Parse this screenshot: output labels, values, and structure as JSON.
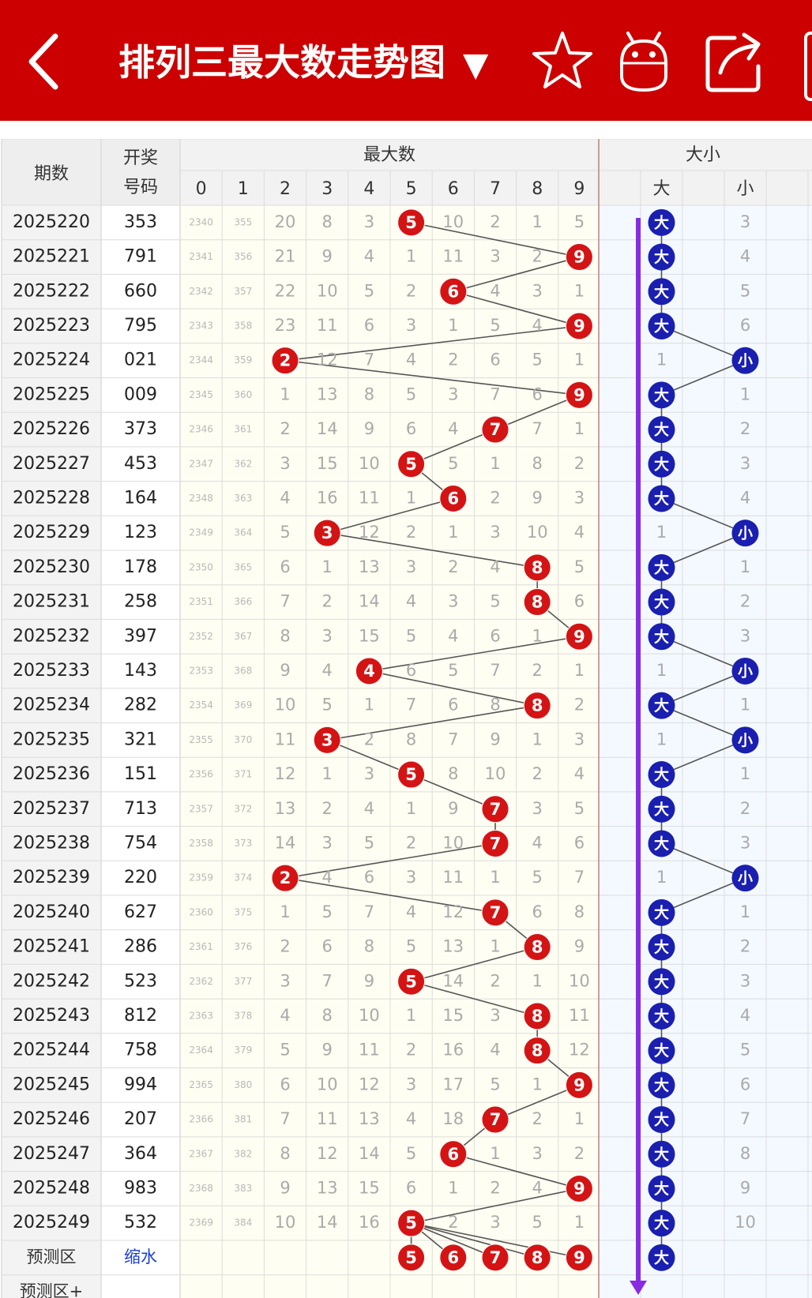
{
  "header": {
    "title": "排列三最大数走势图",
    "dropdown_glyph": "▼",
    "icons": [
      "back-chevron-icon",
      "star-icon",
      "robot-icon",
      "share-icon"
    ],
    "bg_color": "#cc0000"
  },
  "table": {
    "col_period": "期数",
    "col_number_line1": "开奖",
    "col_number_line2": "号码",
    "group_max": "最大数",
    "group_size": "大小",
    "digits": [
      "0",
      "1",
      "2",
      "3",
      "4",
      "5",
      "6",
      "7",
      "8",
      "9"
    ],
    "size_big": "大",
    "size_small": "小",
    "predict_label": "预测区",
    "predict_link": "缩水",
    "predict_plus_label": "预测区+",
    "predict_candidates": [
      "5",
      "6",
      "7",
      "8",
      "9"
    ],
    "predict_size": "大"
  },
  "rows": [
    {
      "period": "2025220",
      "number": "353",
      "miss": [
        "2340",
        "355",
        "20",
        "8",
        "3",
        "5",
        "10",
        "2",
        "1",
        "5"
      ],
      "max": 5,
      "size": "大",
      "small_miss": "3"
    },
    {
      "period": "2025221",
      "number": "791",
      "miss": [
        "2341",
        "356",
        "21",
        "9",
        "4",
        "1",
        "11",
        "3",
        "2",
        "9"
      ],
      "max": 9,
      "size": "大",
      "small_miss": "4"
    },
    {
      "period": "2025222",
      "number": "660",
      "miss": [
        "2342",
        "357",
        "22",
        "10",
        "5",
        "2",
        "6",
        "4",
        "3",
        "1"
      ],
      "max": 6,
      "size": "大",
      "small_miss": "5"
    },
    {
      "period": "2025223",
      "number": "795",
      "miss": [
        "2343",
        "358",
        "23",
        "11",
        "6",
        "3",
        "1",
        "5",
        "4",
        "9"
      ],
      "max": 9,
      "size": "大",
      "small_miss": "6"
    },
    {
      "period": "2025224",
      "number": "021",
      "miss": [
        "2344",
        "359",
        "2",
        "12",
        "7",
        "4",
        "2",
        "6",
        "5",
        "1"
      ],
      "max": 2,
      "size": "小",
      "big_miss": "1"
    },
    {
      "period": "2025225",
      "number": "009",
      "miss": [
        "2345",
        "360",
        "1",
        "13",
        "8",
        "5",
        "3",
        "7",
        "6",
        "9"
      ],
      "max": 9,
      "size": "大",
      "small_miss": "1"
    },
    {
      "period": "2025226",
      "number": "373",
      "miss": [
        "2346",
        "361",
        "2",
        "14",
        "9",
        "6",
        "4",
        "7",
        "7",
        "1"
      ],
      "max": 7,
      "size": "大",
      "small_miss": "2"
    },
    {
      "period": "2025227",
      "number": "453",
      "miss": [
        "2347",
        "362",
        "3",
        "15",
        "10",
        "5",
        "5",
        "1",
        "8",
        "2"
      ],
      "max": 5,
      "size": "大",
      "small_miss": "3"
    },
    {
      "period": "2025228",
      "number": "164",
      "miss": [
        "2348",
        "363",
        "4",
        "16",
        "11",
        "1",
        "6",
        "2",
        "9",
        "3"
      ],
      "max": 6,
      "size": "大",
      "small_miss": "4"
    },
    {
      "period": "2025229",
      "number": "123",
      "miss": [
        "2349",
        "364",
        "5",
        "3",
        "12",
        "2",
        "1",
        "3",
        "10",
        "4"
      ],
      "max": 3,
      "size": "小",
      "big_miss": "1"
    },
    {
      "period": "2025230",
      "number": "178",
      "miss": [
        "2350",
        "365",
        "6",
        "1",
        "13",
        "3",
        "2",
        "4",
        "8",
        "5"
      ],
      "max": 8,
      "size": "大",
      "small_miss": "1"
    },
    {
      "period": "2025231",
      "number": "258",
      "miss": [
        "2351",
        "366",
        "7",
        "2",
        "14",
        "4",
        "3",
        "5",
        "8",
        "6"
      ],
      "max": 8,
      "size": "大",
      "small_miss": "2"
    },
    {
      "period": "2025232",
      "number": "397",
      "miss": [
        "2352",
        "367",
        "8",
        "3",
        "15",
        "5",
        "4",
        "6",
        "1",
        "9"
      ],
      "max": 9,
      "size": "大",
      "small_miss": "3"
    },
    {
      "period": "2025233",
      "number": "143",
      "miss": [
        "2353",
        "368",
        "9",
        "4",
        "4",
        "6",
        "5",
        "7",
        "2",
        "1"
      ],
      "max": 4,
      "size": "小",
      "big_miss": "1"
    },
    {
      "period": "2025234",
      "number": "282",
      "miss": [
        "2354",
        "369",
        "10",
        "5",
        "1",
        "7",
        "6",
        "8",
        "8",
        "2"
      ],
      "max": 8,
      "size": "大",
      "small_miss": "1"
    },
    {
      "period": "2025235",
      "number": "321",
      "miss": [
        "2355",
        "370",
        "11",
        "3",
        "2",
        "8",
        "7",
        "9",
        "1",
        "3"
      ],
      "max": 3,
      "size": "小",
      "big_miss": "1"
    },
    {
      "period": "2025236",
      "number": "151",
      "miss": [
        "2356",
        "371",
        "12",
        "1",
        "3",
        "5",
        "8",
        "10",
        "2",
        "4"
      ],
      "max": 5,
      "size": "大",
      "small_miss": "1"
    },
    {
      "period": "2025237",
      "number": "713",
      "miss": [
        "2357",
        "372",
        "13",
        "2",
        "4",
        "1",
        "9",
        "7",
        "3",
        "5"
      ],
      "max": 7,
      "size": "大",
      "small_miss": "2"
    },
    {
      "period": "2025238",
      "number": "754",
      "miss": [
        "2358",
        "373",
        "14",
        "3",
        "5",
        "2",
        "10",
        "7",
        "4",
        "6"
      ],
      "max": 7,
      "size": "大",
      "small_miss": "3"
    },
    {
      "period": "2025239",
      "number": "220",
      "miss": [
        "2359",
        "374",
        "2",
        "4",
        "6",
        "3",
        "11",
        "1",
        "5",
        "7"
      ],
      "max": 2,
      "size": "小",
      "big_miss": "1"
    },
    {
      "period": "2025240",
      "number": "627",
      "miss": [
        "2360",
        "375",
        "1",
        "5",
        "7",
        "4",
        "12",
        "7",
        "6",
        "8"
      ],
      "max": 7,
      "size": "大",
      "small_miss": "1"
    },
    {
      "period": "2025241",
      "number": "286",
      "miss": [
        "2361",
        "376",
        "2",
        "6",
        "8",
        "5",
        "13",
        "1",
        "8",
        "9"
      ],
      "max": 8,
      "size": "大",
      "small_miss": "2"
    },
    {
      "period": "2025242",
      "number": "523",
      "miss": [
        "2362",
        "377",
        "3",
        "7",
        "9",
        "5",
        "14",
        "2",
        "1",
        "10"
      ],
      "max": 5,
      "size": "大",
      "small_miss": "3"
    },
    {
      "period": "2025243",
      "number": "812",
      "miss": [
        "2363",
        "378",
        "4",
        "8",
        "10",
        "1",
        "15",
        "3",
        "8",
        "11"
      ],
      "max": 8,
      "size": "大",
      "small_miss": "4"
    },
    {
      "period": "2025244",
      "number": "758",
      "miss": [
        "2364",
        "379",
        "5",
        "9",
        "11",
        "2",
        "16",
        "4",
        "8",
        "12"
      ],
      "max": 8,
      "size": "大",
      "small_miss": "5"
    },
    {
      "period": "2025245",
      "number": "994",
      "miss": [
        "2365",
        "380",
        "6",
        "10",
        "12",
        "3",
        "17",
        "5",
        "1",
        "9"
      ],
      "max": 9,
      "size": "大",
      "small_miss": "6"
    },
    {
      "period": "2025246",
      "number": "207",
      "miss": [
        "2366",
        "381",
        "7",
        "11",
        "13",
        "4",
        "18",
        "7",
        "2",
        "1"
      ],
      "max": 7,
      "size": "大",
      "small_miss": "7"
    },
    {
      "period": "2025247",
      "number": "364",
      "miss": [
        "2367",
        "382",
        "8",
        "12",
        "14",
        "5",
        "6",
        "1",
        "3",
        "2"
      ],
      "max": 6,
      "size": "大",
      "small_miss": "8"
    },
    {
      "period": "2025248",
      "number": "983",
      "miss": [
        "2368",
        "383",
        "9",
        "13",
        "15",
        "6",
        "1",
        "2",
        "4",
        "9"
      ],
      "max": 9,
      "size": "大",
      "small_miss": "9"
    },
    {
      "period": "2025249",
      "number": "532",
      "miss": [
        "2369",
        "384",
        "10",
        "14",
        "16",
        "5",
        "2",
        "3",
        "5",
        "1"
      ],
      "max": 5,
      "size": "大",
      "small_miss": "10"
    }
  ],
  "colors": {
    "header_red": "#cc0000",
    "ball_red": "#d41414",
    "ball_blue": "#1a1fb0",
    "arrow_purple": "#8a2be2",
    "grid": "#dcdcdc",
    "miss_text": "#aaaaaa"
  }
}
